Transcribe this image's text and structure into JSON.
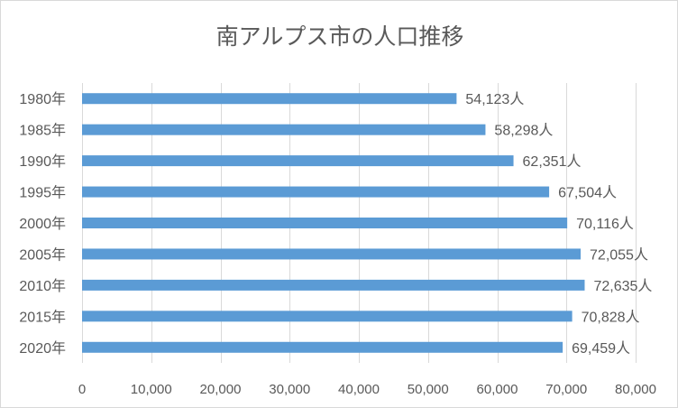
{
  "chart_data": {
    "type": "bar",
    "orientation": "horizontal",
    "title": "南アルプス市の人口推移",
    "categories": [
      "1980年",
      "1985年",
      "1990年",
      "1995年",
      "2000年",
      "2005年",
      "2010年",
      "2015年",
      "2020年"
    ],
    "values": [
      54123,
      58298,
      62351,
      67504,
      70116,
      72055,
      72635,
      70828,
      69459
    ],
    "data_labels": [
      "54,123人",
      "58,298人",
      "62,351人",
      "67,504人",
      "70,116人",
      "72,055人",
      "72,635人",
      "70,828人",
      "69,459人"
    ],
    "xlim": [
      0,
      80000
    ],
    "x_ticks": [
      0,
      10000,
      20000,
      30000,
      40000,
      50000,
      60000,
      70000,
      80000
    ],
    "x_tick_labels": [
      "0",
      "10,000",
      "20,000",
      "30,000",
      "40,000",
      "50,000",
      "60,000",
      "70,000",
      "80,000"
    ],
    "xlabel": "",
    "ylabel": "",
    "grid": true,
    "legend": "none",
    "bar_color": "#5B9BD5",
    "grid_color": "#D9D9D9",
    "text_color": "#595959"
  }
}
